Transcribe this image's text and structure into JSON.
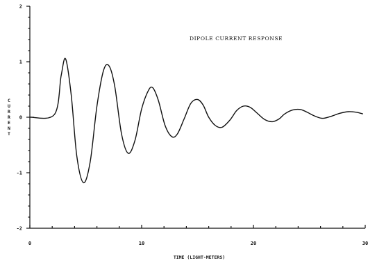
{
  "chart_data": {
    "type": "line",
    "title": "DIPOLE CURRENT RESPONSE",
    "xlabel": "TIME (LIGHT-METERS)",
    "ylabel": "CURRENT",
    "xlim": [
      0,
      30
    ],
    "ylim": [
      -2,
      2
    ],
    "x_ticks": [
      "0",
      "10",
      "20",
      "30"
    ],
    "y_ticks": [
      "2",
      "1",
      "0",
      "-1",
      "-2"
    ],
    "grid": false,
    "legend": "none",
    "series": [
      {
        "x": [
          0,
          2.2,
          2.8,
          3.2,
          3.7,
          4.2,
          4.8,
          5.4,
          6.0,
          6.6,
          7.1,
          7.6,
          8.2,
          8.8,
          9.4,
          10.0,
          10.6,
          11.0,
          11.5,
          12.1,
          12.7,
          13.2,
          13.8,
          14.4,
          15.0,
          15.5,
          16.0,
          16.6,
          17.2,
          17.9,
          18.5,
          19.1,
          19.7,
          20.3,
          21.0,
          21.7,
          22.3,
          22.8,
          23.5,
          24.2,
          24.8,
          25.5,
          26.2,
          27.0,
          27.7,
          28.5,
          29.2,
          29.8
        ],
        "y": [
          0,
          0.05,
          0.75,
          1.05,
          0.4,
          -0.7,
          -1.18,
          -0.8,
          0.2,
          0.85,
          0.92,
          0.55,
          -0.3,
          -0.65,
          -0.42,
          0.15,
          0.48,
          0.53,
          0.3,
          -0.15,
          -0.35,
          -0.3,
          -0.03,
          0.25,
          0.32,
          0.22,
          0.0,
          -0.15,
          -0.18,
          -0.05,
          0.12,
          0.2,
          0.18,
          0.08,
          -0.04,
          -0.08,
          -0.03,
          0.06,
          0.13,
          0.14,
          0.09,
          0.02,
          -0.02,
          0.02,
          0.07,
          0.1,
          0.09,
          0.06
        ]
      }
    ]
  }
}
